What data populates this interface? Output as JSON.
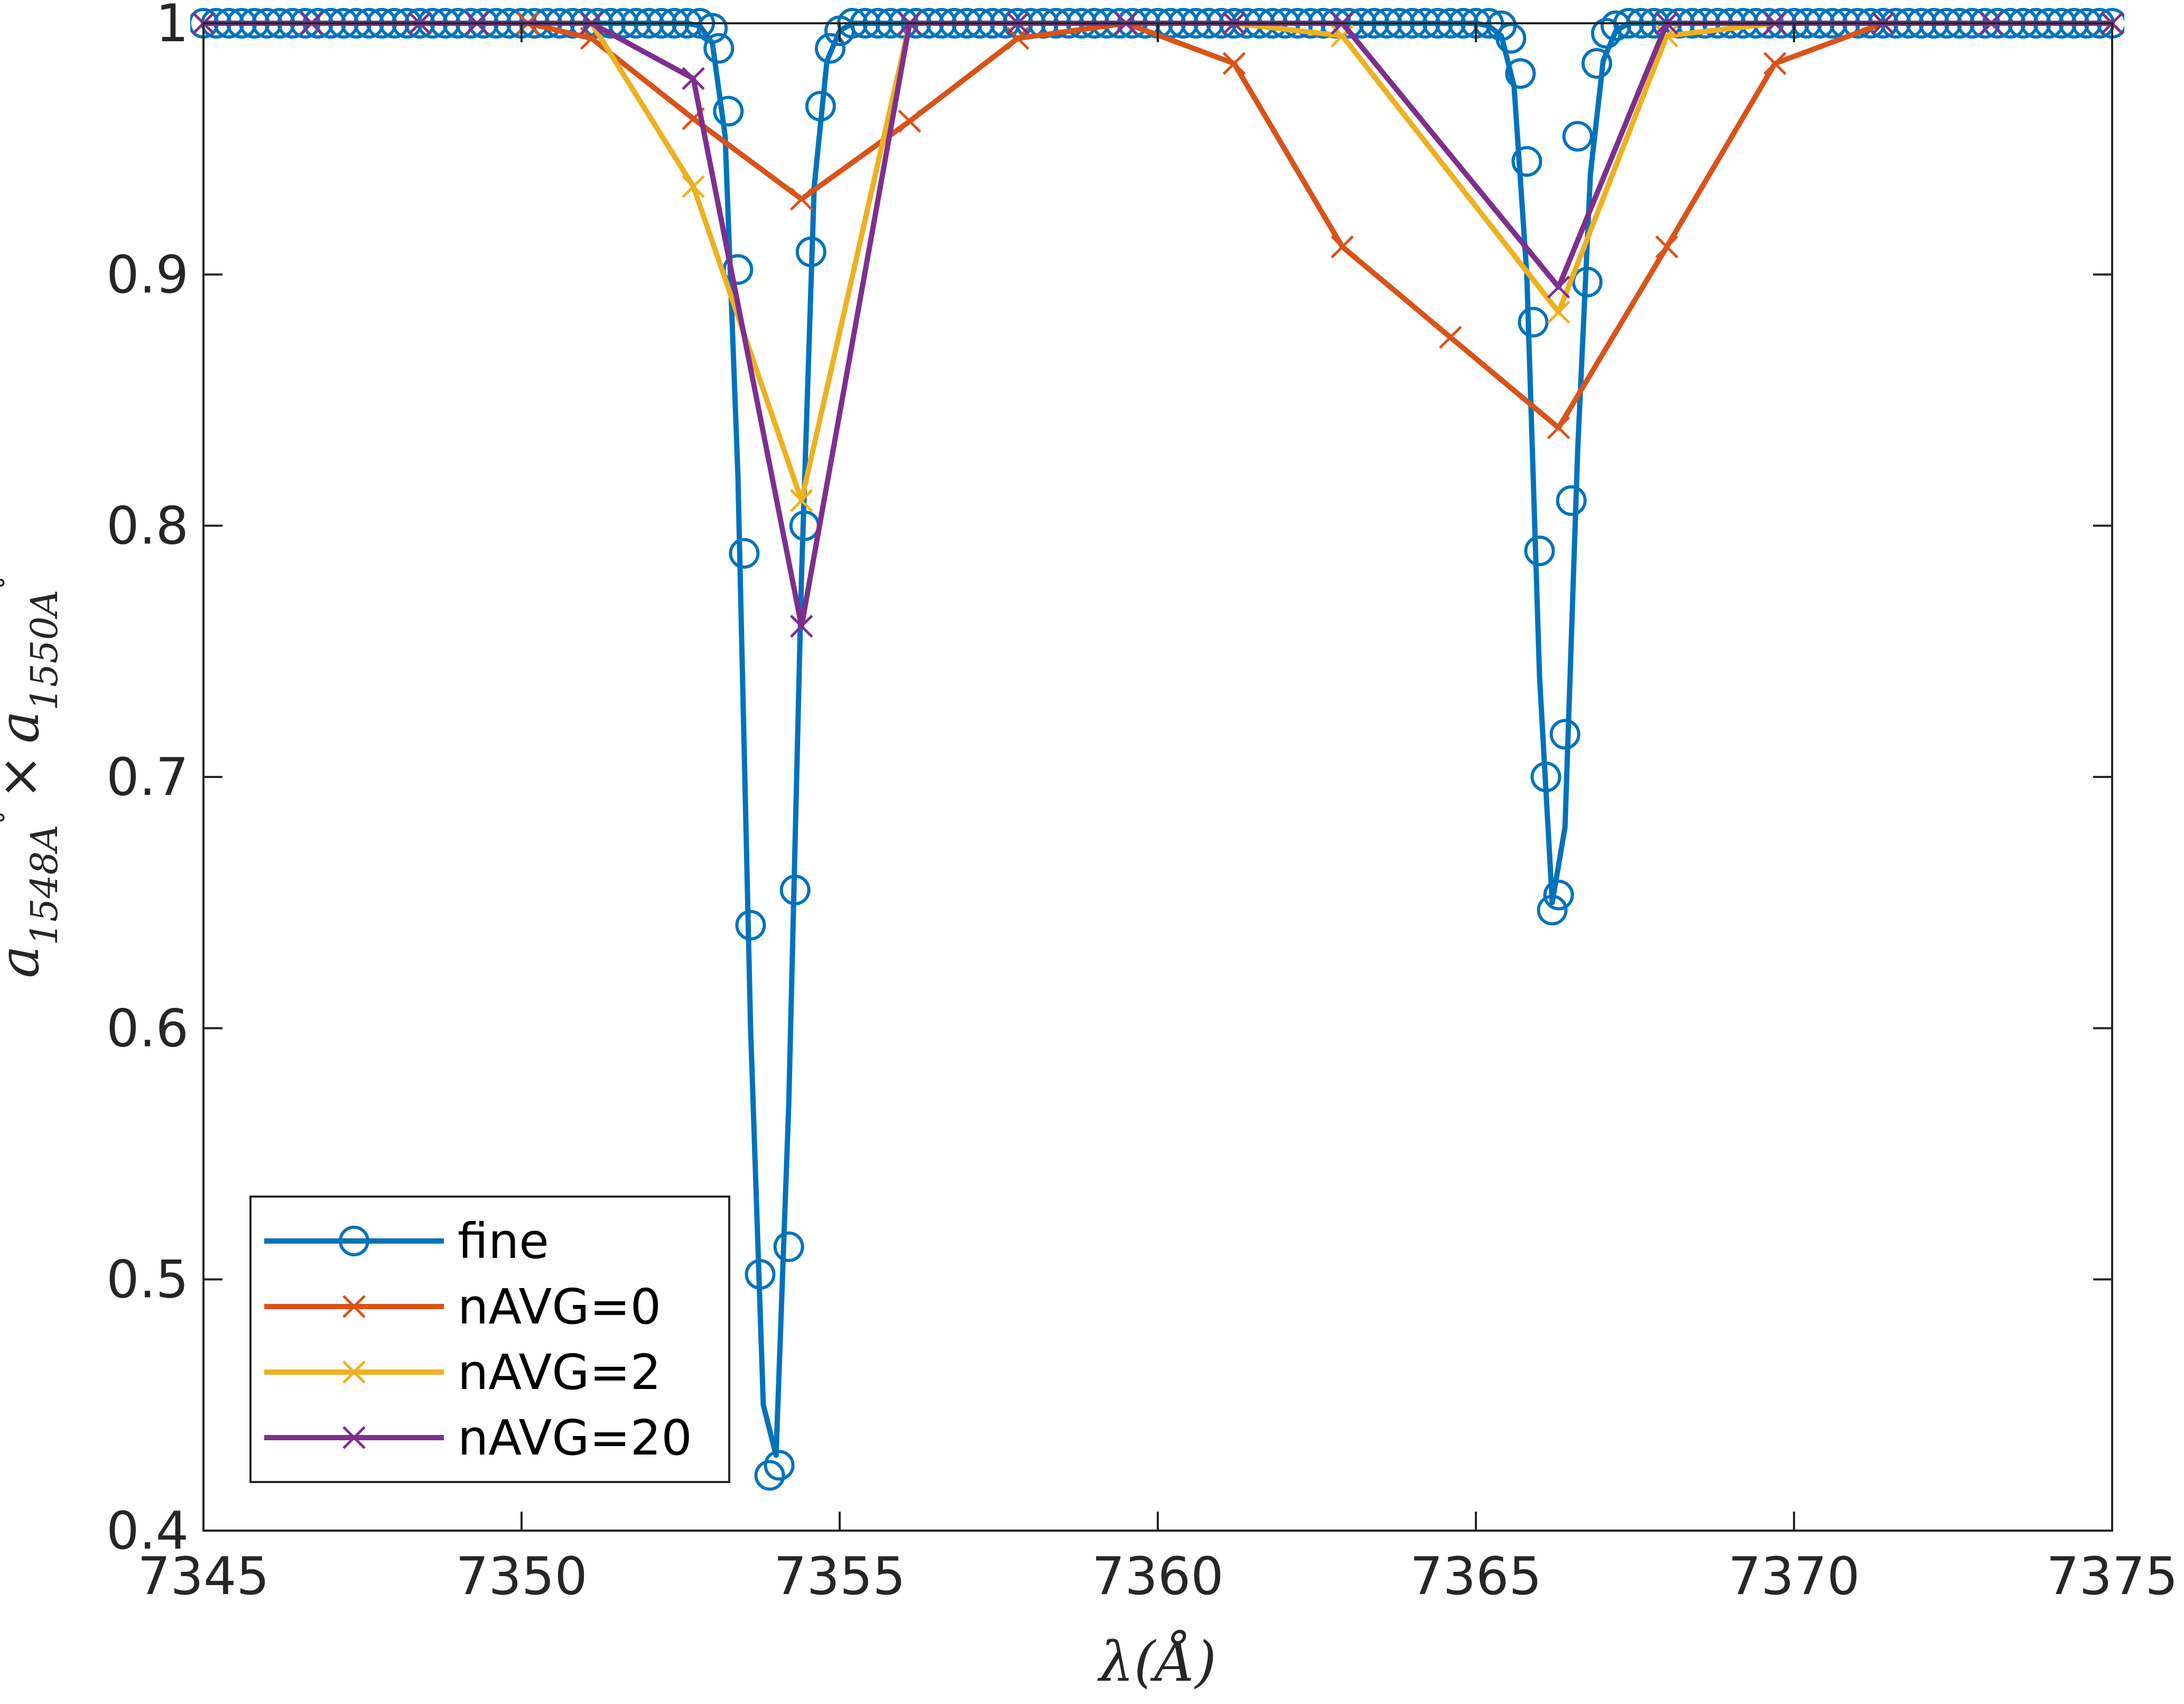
{
  "chart_data": {
    "type": "line",
    "xlabel": "λ(Å)",
    "ylabel_parts": {
      "a": "a",
      "sub1": "1548A",
      "times": "×",
      "sub2": "1550A",
      "ring": "∘"
    },
    "xlim": [
      7345,
      7375
    ],
    "ylim": [
      0.4,
      1.0
    ],
    "xticks": [
      "7345",
      "7350",
      "7355",
      "7360",
      "7365",
      "7370",
      "7375"
    ],
    "yticks": [
      "0.4",
      "0.5",
      "0.6",
      "0.7",
      "0.8",
      "0.9",
      "1"
    ],
    "grid": false,
    "legend_position": "bottom-left",
    "series": [
      {
        "name": "fine",
        "color": "#0072BD",
        "marker": "circle",
        "x": [
          7345.0,
          7345.2,
          7345.4,
          7345.6,
          7345.8,
          7346.0,
          7346.2,
          7346.4,
          7346.6,
          7346.8,
          7347.0,
          7347.2,
          7347.4,
          7347.6,
          7347.8,
          7348.0,
          7348.2,
          7348.4,
          7348.6,
          7348.8,
          7349.0,
          7349.2,
          7349.4,
          7349.6,
          7349.8,
          7350.0,
          7350.2,
          7350.4,
          7350.6,
          7350.8,
          7351.0,
          7351.2,
          7351.4,
          7351.6,
          7351.8,
          7352.0,
          7352.2,
          7352.4,
          7352.6,
          7352.8,
          7353.0,
          7353.2,
          7353.4,
          7353.6,
          7353.8,
          7354.0,
          7354.2,
          7354.4,
          7354.6,
          7354.8,
          7355.0,
          7355.2,
          7355.4,
          7355.6,
          7355.8,
          7356.0,
          7356.2,
          7356.4,
          7356.6,
          7356.8,
          7357.0,
          7357.2,
          7357.4,
          7357.6,
          7357.8,
          7358.0,
          7358.2,
          7358.4,
          7358.6,
          7358.8,
          7359.0,
          7359.2,
          7359.4,
          7359.6,
          7359.8,
          7360.0,
          7360.2,
          7360.4,
          7360.6,
          7360.8,
          7361.0,
          7361.2,
          7361.4,
          7361.6,
          7361.8,
          7362.0,
          7362.2,
          7362.4,
          7362.6,
          7362.8,
          7363.0,
          7363.2,
          7363.4,
          7363.6,
          7363.8,
          7364.0,
          7364.2,
          7364.4,
          7364.6,
          7364.8,
          7365.0,
          7365.2,
          7365.4,
          7365.6,
          7365.8,
          7366.0,
          7366.2,
          7366.4,
          7366.6,
          7366.8,
          7367.0,
          7367.2,
          7367.4,
          7367.6,
          7367.8,
          7368.0,
          7368.2,
          7368.4,
          7368.6,
          7368.8,
          7369.0,
          7369.2,
          7369.4,
          7369.6,
          7369.8,
          7370.0,
          7370.2,
          7370.4,
          7370.6,
          7370.8,
          7371.0,
          7371.2,
          7371.4,
          7371.6,
          7371.8,
          7372.0,
          7372.2,
          7372.4,
          7372.6,
          7372.8,
          7373.0,
          7373.2,
          7373.4,
          7373.6,
          7373.8,
          7374.0,
          7374.2,
          7374.4,
          7374.6,
          7374.8,
          7375.0
        ],
        "y": [
          1.0,
          1.0,
          1.0,
          1.0,
          1.0,
          1.0,
          1.0,
          1.0,
          1.0,
          1.0,
          1.0,
          1.0,
          1.0,
          1.0,
          1.0,
          1.0,
          1.0,
          1.0,
          1.0,
          1.0,
          1.0,
          1.0,
          1.0,
          1.0,
          1.0,
          1.0,
          1.0,
          1.0,
          1.0,
          1.0,
          1.0,
          1.0,
          1.0,
          1.0,
          1.0,
          1.0,
          1.0,
          1.0,
          1.0,
          0.999,
          0.992,
          0.955,
          0.82,
          0.6,
          0.45,
          0.43,
          0.57,
          0.78,
          0.935,
          0.985,
          0.997,
          1.0,
          1.0,
          1.0,
          1.0,
          1.0,
          1.0,
          1.0,
          1.0,
          1.0,
          1.0,
          1.0,
          1.0,
          1.0,
          1.0,
          1.0,
          1.0,
          1.0,
          1.0,
          1.0,
          1.0,
          1.0,
          1.0,
          1.0,
          1.0,
          1.0,
          1.0,
          1.0,
          1.0,
          1.0,
          1.0,
          1.0,
          1.0,
          1.0,
          1.0,
          1.0,
          1.0,
          1.0,
          1.0,
          1.0,
          1.0,
          1.0,
          1.0,
          1.0,
          1.0,
          1.0,
          1.0,
          1.0,
          1.0,
          1.0,
          1.0,
          0.999,
          0.995,
          0.975,
          0.9,
          0.74,
          0.65,
          0.68,
          0.83,
          0.94,
          0.985,
          0.997,
          1.0,
          1.0,
          1.0,
          1.0,
          1.0,
          1.0,
          1.0,
          1.0,
          1.0,
          1.0,
          1.0,
          1.0,
          1.0,
          1.0,
          1.0,
          1.0,
          1.0,
          1.0,
          1.0,
          1.0,
          1.0,
          1.0,
          1.0,
          1.0,
          1.0,
          1.0,
          1.0,
          1.0,
          1.0,
          1.0,
          1.0,
          1.0,
          1.0,
          1.0,
          1.0,
          1.0,
          1.0,
          1.0,
          1.0
        ],
        "markers_x": [
          7345.0,
          7345.2,
          7345.4,
          7345.6,
          7345.8,
          7346.0,
          7346.2,
          7346.4,
          7346.6,
          7346.8,
          7347.0,
          7347.2,
          7347.4,
          7347.6,
          7347.8,
          7348.0,
          7348.2,
          7348.4,
          7348.6,
          7348.8,
          7349.0,
          7349.2,
          7349.4,
          7349.6,
          7349.8,
          7350.0,
          7350.2,
          7350.4,
          7350.6,
          7350.8,
          7351.0,
          7351.2,
          7351.4,
          7351.6,
          7351.8,
          7352.0,
          7352.2,
          7352.4,
          7352.6,
          7352.8,
          7353.0,
          7353.1,
          7353.25,
          7353.4,
          7353.5,
          7353.6,
          7353.75,
          7353.9,
          7354.05,
          7354.2,
          7354.3,
          7354.45,
          7354.55,
          7354.7,
          7354.85,
          7355.0,
          7355.2,
          7355.4,
          7355.6,
          7355.8,
          7356.0,
          7356.2,
          7356.4,
          7356.6,
          7356.8,
          7357.0,
          7357.2,
          7357.4,
          7357.6,
          7357.8,
          7358.0,
          7358.2,
          7358.4,
          7358.6,
          7358.8,
          7359.0,
          7359.2,
          7359.4,
          7359.6,
          7359.8,
          7360.0,
          7360.2,
          7360.4,
          7360.6,
          7360.8,
          7361.0,
          7361.2,
          7361.4,
          7361.6,
          7361.8,
          7362.0,
          7362.2,
          7362.4,
          7362.6,
          7362.8,
          7363.0,
          7363.2,
          7363.4,
          7363.6,
          7363.8,
          7364.0,
          7364.2,
          7364.4,
          7364.6,
          7364.8,
          7365.0,
          7365.2,
          7365.4,
          7365.55,
          7365.7,
          7365.8,
          7365.9,
          7366.0,
          7366.1,
          7366.2,
          7366.3,
          7366.4,
          7366.5,
          7366.6,
          7366.75,
          7366.9,
          7367.05,
          7367.2,
          7367.4,
          7367.6,
          7367.8,
          7368.0,
          7368.2,
          7368.4,
          7368.6,
          7368.8,
          7369.0,
          7369.2,
          7369.4,
          7369.6,
          7369.8,
          7370.0,
          7370.2,
          7370.4,
          7370.6,
          7370.8,
          7371.0,
          7371.2,
          7371.4,
          7371.6,
          7371.8,
          7372.0,
          7372.2,
          7372.4,
          7372.6,
          7372.8,
          7373.0,
          7373.2,
          7373.4,
          7373.6,
          7373.8,
          7374.0,
          7374.2,
          7374.4,
          7374.6,
          7374.8,
          7375.0
        ],
        "markers_y": [
          1.0,
          1.0,
          1.0,
          1.0,
          1.0,
          1.0,
          1.0,
          1.0,
          1.0,
          1.0,
          1.0,
          1.0,
          1.0,
          1.0,
          1.0,
          1.0,
          1.0,
          1.0,
          1.0,
          1.0,
          1.0,
          1.0,
          1.0,
          1.0,
          1.0,
          1.0,
          1.0,
          1.0,
          1.0,
          1.0,
          1.0,
          1.0,
          1.0,
          1.0,
          1.0,
          1.0,
          1.0,
          1.0,
          1.0,
          1.0,
          0.998,
          0.99,
          0.965,
          0.902,
          0.789,
          0.641,
          0.502,
          0.422,
          0.426,
          0.513,
          0.655,
          0.8,
          0.909,
          0.967,
          0.99,
          0.997,
          1.0,
          1.0,
          1.0,
          1.0,
          1.0,
          1.0,
          1.0,
          1.0,
          1.0,
          1.0,
          1.0,
          1.0,
          1.0,
          1.0,
          1.0,
          1.0,
          1.0,
          1.0,
          1.0,
          1.0,
          1.0,
          1.0,
          1.0,
          1.0,
          1.0,
          1.0,
          1.0,
          1.0,
          1.0,
          1.0,
          1.0,
          1.0,
          1.0,
          1.0,
          1.0,
          1.0,
          1.0,
          1.0,
          1.0,
          1.0,
          1.0,
          1.0,
          1.0,
          1.0,
          1.0,
          1.0,
          1.0,
          1.0,
          1.0,
          1.0,
          1.0,
          0.999,
          0.994,
          0.98,
          0.945,
          0.881,
          0.79,
          0.7,
          0.647,
          0.653,
          0.717,
          0.81,
          0.955,
          0.897,
          0.984,
          0.996,
          0.999,
          1.0,
          1.0,
          1.0,
          1.0,
          1.0,
          1.0,
          1.0,
          1.0,
          1.0,
          1.0,
          1.0,
          1.0,
          1.0,
          1.0,
          1.0,
          1.0,
          1.0,
          1.0,
          1.0,
          1.0,
          1.0,
          1.0,
          1.0,
          1.0,
          1.0,
          1.0,
          1.0,
          1.0,
          1.0,
          1.0,
          1.0,
          1.0,
          1.0,
          1.0,
          1.0,
          1.0,
          1.0,
          1.0,
          1.0,
          1.0
        ]
      },
      {
        "name": "nAVG=0",
        "color": "#D95319",
        "marker": "x",
        "x": [
          7345.0,
          7346.7,
          7348.4,
          7350.1,
          7351.1,
          7352.7,
          7354.4,
          7356.1,
          7357.8,
          7359.5,
          7361.2,
          7362.9,
          7364.6,
          7366.3,
          7368.0,
          7369.7,
          7371.4,
          7373.1,
          7375.0
        ],
        "y": [
          1.0,
          1.0,
          1.0,
          1.0,
          0.994,
          0.962,
          0.93,
          0.961,
          0.994,
          1.0,
          0.984,
          0.911,
          0.875,
          0.839,
          0.911,
          0.984,
          1.0,
          1.0,
          1.0
        ]
      },
      {
        "name": "nAVG=2",
        "color": "#EDB120",
        "marker": "x",
        "x": [
          7345.0,
          7346.7,
          7348.4,
          7349.3,
          7351.1,
          7352.7,
          7354.4,
          7356.1,
          7357.8,
          7359.5,
          7361.2,
          7362.9,
          7366.3,
          7368.0,
          7369.7,
          7371.4,
          7373.1,
          7375.0
        ],
        "y": [
          1.0,
          1.0,
          1.0,
          1.0,
          1.0,
          0.935,
          0.81,
          1.0,
          1.0,
          1.0,
          1.0,
          0.995,
          0.885,
          0.995,
          1.0,
          1.0,
          1.0,
          1.0
        ]
      },
      {
        "name": "nAVG=20",
        "color": "#7E2F8E",
        "marker": "x",
        "x": [
          7345.0,
          7346.7,
          7348.4,
          7349.3,
          7351.1,
          7352.7,
          7354.4,
          7356.1,
          7357.8,
          7359.5,
          7361.2,
          7362.9,
          7366.3,
          7368.0,
          7369.7,
          7371.4,
          7373.1,
          7375.0
        ],
        "y": [
          1.0,
          1.0,
          1.0,
          1.0,
          1.0,
          0.978,
          0.76,
          1.0,
          1.0,
          1.0,
          1.0,
          1.0,
          0.895,
          1.0,
          1.0,
          1.0,
          1.0,
          1.0
        ]
      }
    ]
  }
}
